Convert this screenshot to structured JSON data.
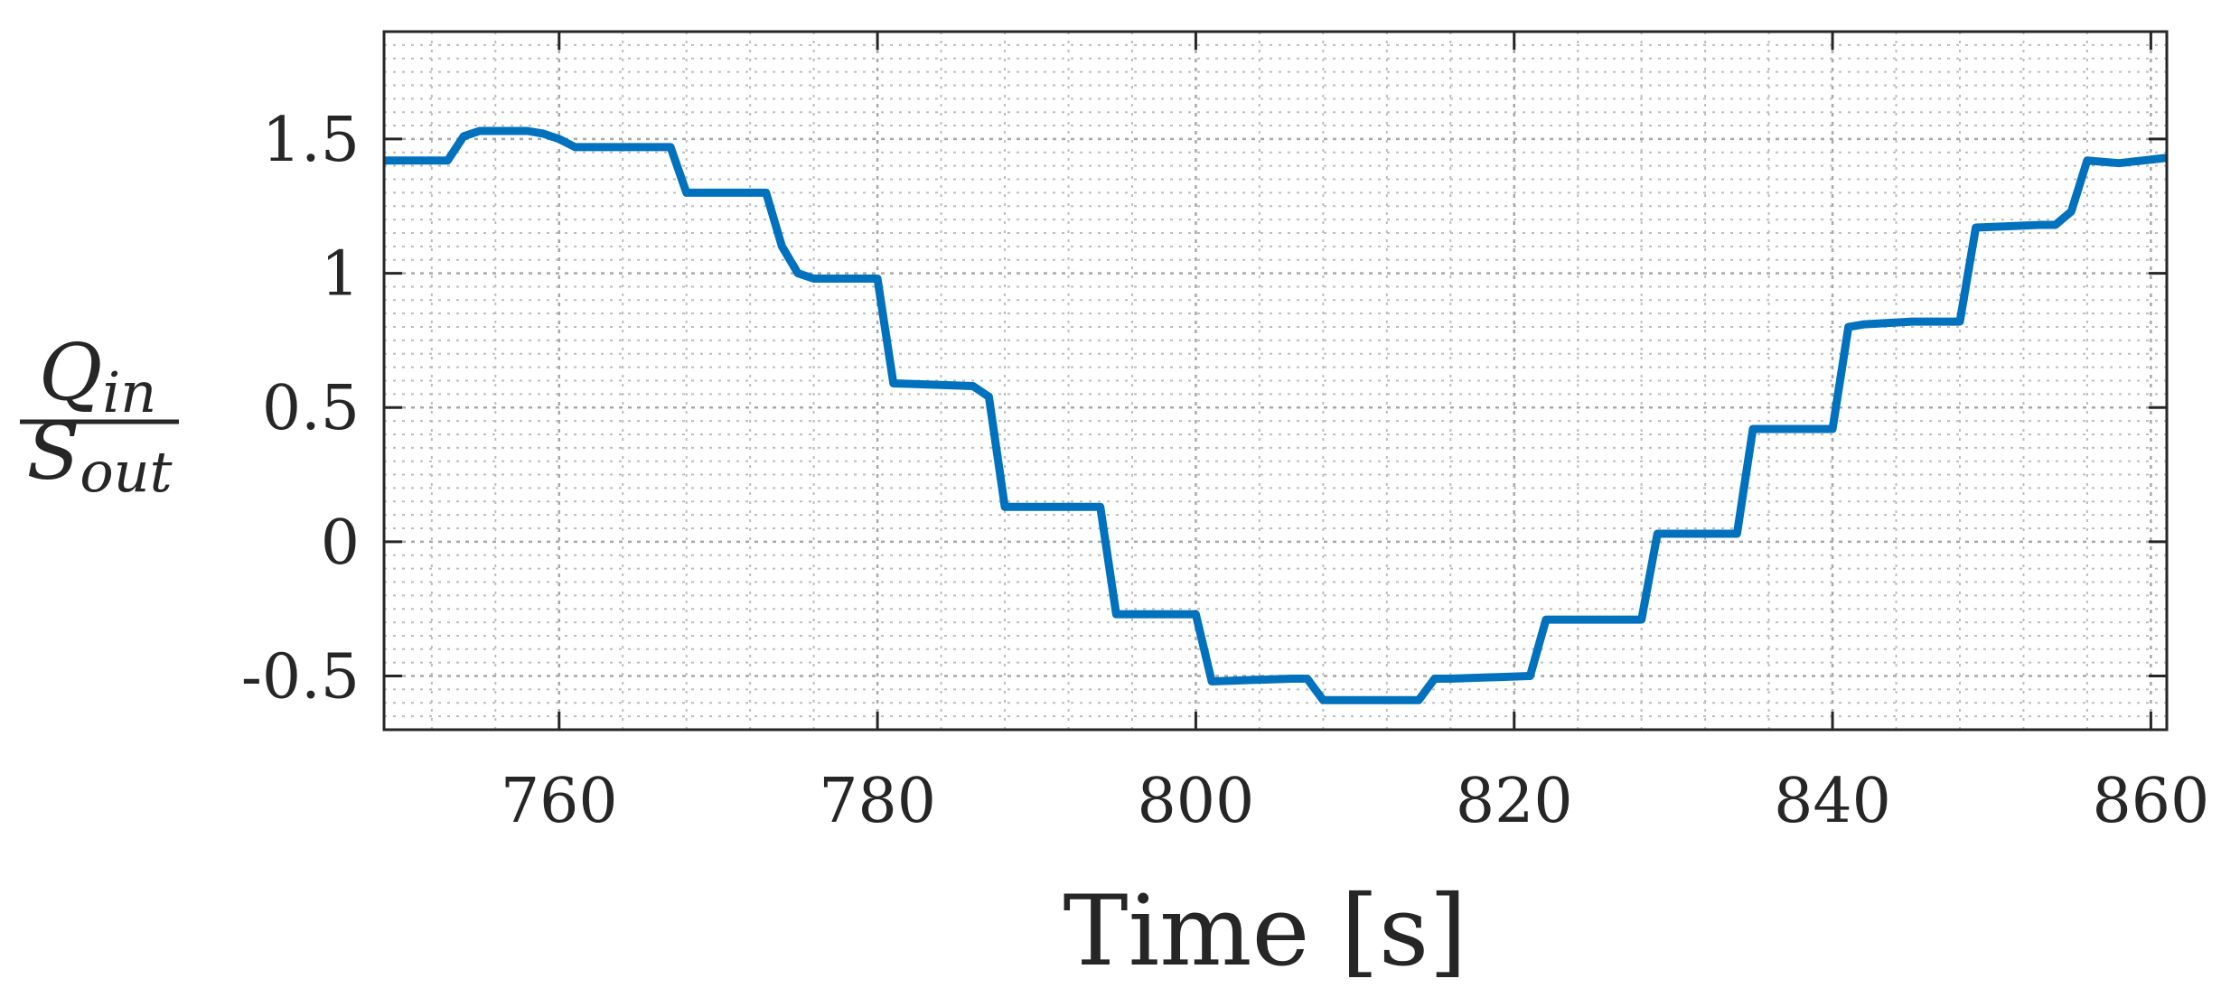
{
  "chart_data": {
    "type": "line",
    "title": "",
    "xlabel": "Time [s]",
    "ylabel": {
      "numerator_base": "Q",
      "numerator_sub": "in",
      "denominator_base": "S",
      "denominator_sub": "out"
    },
    "xlim": [
      749,
      861
    ],
    "ylim": [
      -0.7,
      1.9
    ],
    "xticks": [
      760,
      780,
      800,
      820,
      840,
      860
    ],
    "yticks": [
      -0.5,
      0,
      0.5,
      1,
      1.5
    ],
    "xtick_labels": [
      "760",
      "780",
      "800",
      "820",
      "840",
      "860"
    ],
    "ytick_labels": [
      "-0.5",
      "0",
      "0.5",
      "1",
      "1.5"
    ],
    "grid": true,
    "minor_grid": true,
    "series": [
      {
        "color": "#0072BD",
        "x": [
          749,
          753,
          754,
          755,
          758,
          759,
          760,
          761,
          765,
          767,
          768,
          769,
          773,
          774,
          775,
          776,
          780,
          781,
          786,
          787,
          788,
          789,
          794,
          795,
          800,
          801,
          806,
          807,
          808,
          814,
          815,
          816,
          821,
          822,
          827,
          828,
          829,
          830,
          834,
          835,
          840,
          841,
          842,
          845,
          848,
          849,
          853,
          854,
          855,
          856,
          858,
          861
        ],
        "y": [
          1.42,
          1.42,
          1.51,
          1.53,
          1.53,
          1.52,
          1.5,
          1.47,
          1.47,
          1.47,
          1.3,
          1.3,
          1.3,
          1.1,
          1.0,
          0.98,
          0.98,
          0.59,
          0.58,
          0.54,
          0.13,
          0.13,
          0.13,
          -0.27,
          -0.27,
          -0.52,
          -0.51,
          -0.51,
          -0.59,
          -0.59,
          -0.51,
          -0.51,
          -0.5,
          -0.29,
          -0.29,
          -0.29,
          0.03,
          0.03,
          0.03,
          0.42,
          0.42,
          0.8,
          0.81,
          0.82,
          0.82,
          1.17,
          1.18,
          1.18,
          1.23,
          1.42,
          1.41,
          1.43
        ]
      }
    ]
  }
}
